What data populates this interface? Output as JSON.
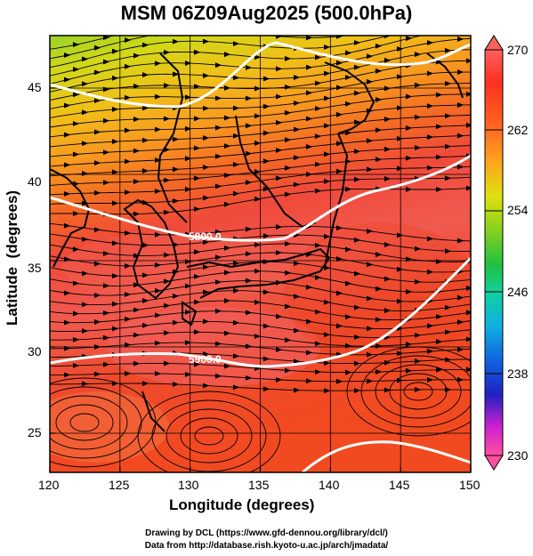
{
  "title": "MSM 06Z09Aug2025 (500.0hPa)",
  "x_axis": {
    "label": "Longitude (degrees)",
    "ticks": [
      "120",
      "125",
      "130",
      "135",
      "140",
      "145",
      "150"
    ]
  },
  "y_axis": {
    "label": "Latitude  (degrees)",
    "ticks": [
      "25",
      "30",
      "35",
      "40",
      "45"
    ]
  },
  "colorbar": {
    "ticks": [
      "270",
      "262",
      "254",
      "246",
      "238",
      "230"
    ],
    "colors": [
      "#ff50a0",
      "#d020d0",
      "#2020c0",
      "#1060e0",
      "#10b0e0",
      "#10d0a0",
      "#20c040",
      "#80d020",
      "#e0e010",
      "#ffa020",
      "#ff6020",
      "#ff3020",
      "#ff6060"
    ]
  },
  "contours": [
    {
      "label": "5800.0"
    },
    {
      "label": "5900.0"
    }
  ],
  "credits": {
    "line1": "Drawing by DCL (https://www.gfd-dennou.org/library/dcl/)",
    "line2": "Data from http://database.rish.kyoto-u.ac.jp/arch/jmadata/"
  }
}
